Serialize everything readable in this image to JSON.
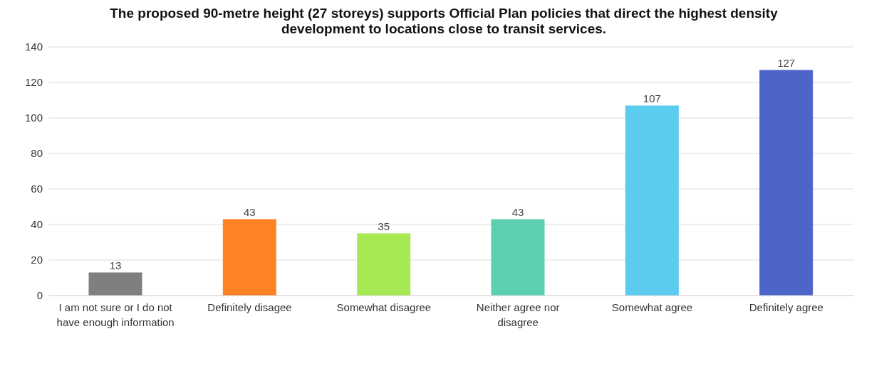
{
  "chart_data": {
    "type": "bar",
    "title": "The proposed 90-metre height (27 storeys) supports Official Plan policies that direct the highest density development to locations close to transit services.",
    "categories": [
      "I am not sure or I do not have enough information",
      "Definitely disagee",
      "Somewhat disagree",
      "Neither agree nor disagree",
      "Somewhat agree",
      "Definitely agree"
    ],
    "values": [
      13,
      43,
      35,
      43,
      107,
      127
    ],
    "colors": [
      "#7f7f7f",
      "#ff8225",
      "#a6e952",
      "#5ccfb0",
      "#5ccbf0",
      "#4d64c8"
    ],
    "ylim": [
      0,
      140
    ],
    "yticks": [
      0,
      20,
      40,
      60,
      80,
      100,
      120,
      140
    ],
    "grid": "y",
    "data_labels": true
  }
}
